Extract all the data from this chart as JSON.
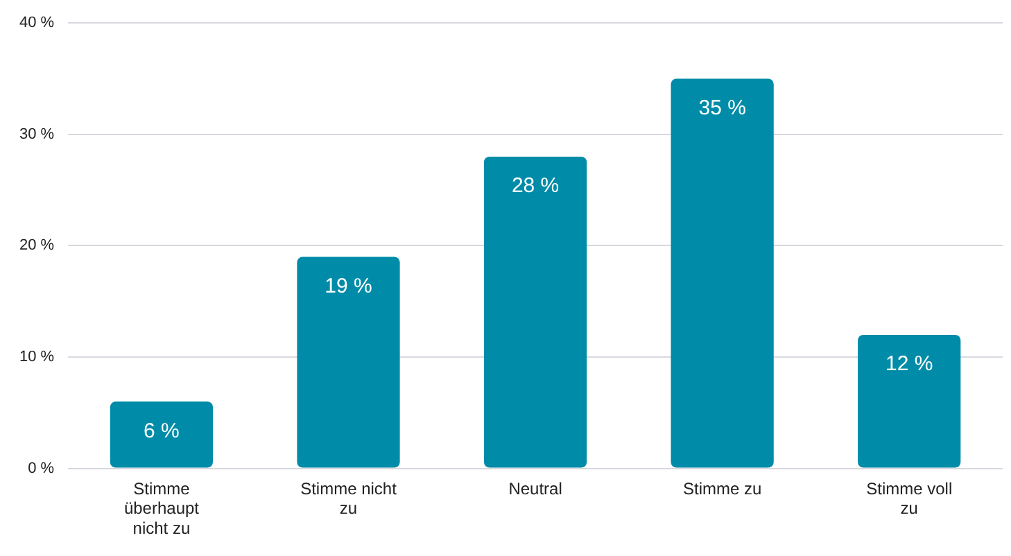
{
  "chart_data": {
    "type": "bar",
    "categories": [
      "Stimme überhaupt nicht zu",
      "Stimme nicht zu",
      "Neutral",
      "Stimme zu",
      "Stimme voll zu"
    ],
    "values": [
      6,
      19,
      28,
      35,
      12
    ],
    "color": "#008ca8",
    "value_labels": [
      "6 %",
      "19 %",
      "28 %",
      "35 %",
      "12 %"
    ],
    "ylim": [
      0,
      40
    ],
    "yticks": [
      {
        "value": 0,
        "label": "0 %"
      },
      {
        "value": 10,
        "label": "10 %"
      },
      {
        "value": 20,
        "label": "20 %"
      },
      {
        "value": 30,
        "label": "30 %"
      },
      {
        "value": 40,
        "label": "40 %"
      }
    ],
    "grid": "y",
    "legend": false
  }
}
